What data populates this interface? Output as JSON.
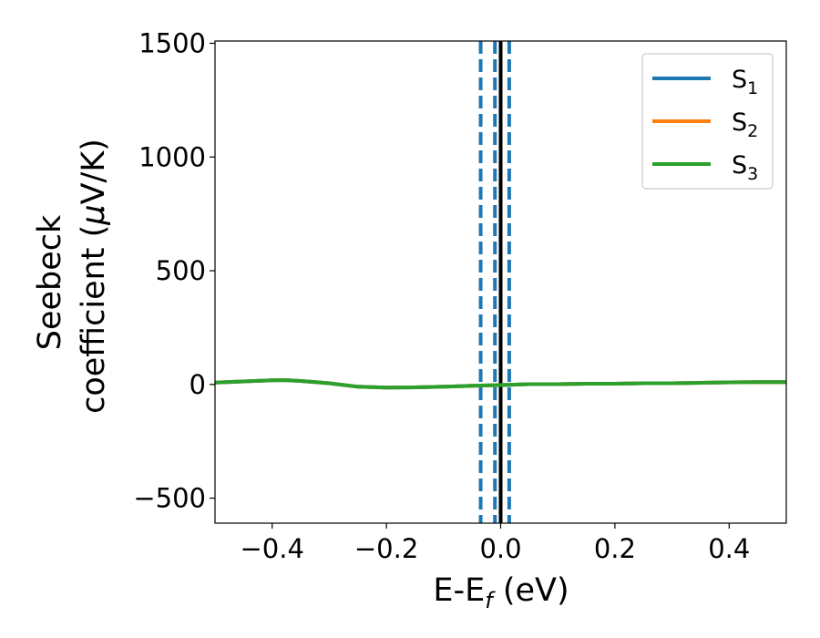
{
  "chart_data": {
    "type": "line",
    "xlabel": {
      "main": "E-E",
      "sub": "f",
      "tail": " (eV)"
    },
    "ylabel": {
      "line1": "Seebeck",
      "line2_pre": "coefficient  (",
      "mu": "μ",
      "line2_post": "V/K)"
    },
    "xlim": [
      -0.5,
      0.5
    ],
    "ylim": [
      -610,
      1510
    ],
    "x_ticks": [
      -0.4,
      -0.2,
      0.0,
      0.2,
      0.4
    ],
    "x_tick_labels": [
      "−0.4",
      "−0.2",
      "0.0",
      "0.2",
      "0.4"
    ],
    "y_ticks": [
      -500,
      0,
      500,
      1000,
      1500
    ],
    "y_tick_labels": [
      "−500",
      "0",
      "500",
      "1000",
      "1500"
    ],
    "legend_position": "top-right",
    "series": [
      {
        "name": "S",
        "sub": "1",
        "color": "#1f77b4",
        "x": [
          -0.5,
          -0.45,
          -0.4,
          -0.38,
          -0.35,
          -0.3,
          -0.25,
          -0.2,
          -0.15,
          -0.1,
          -0.05,
          0.0,
          0.05,
          0.1,
          0.15,
          0.2,
          0.25,
          0.3,
          0.35,
          0.4,
          0.45,
          0.5
        ],
        "y": [
          8,
          13,
          18,
          19,
          15,
          5,
          -10,
          -14,
          -13,
          -10,
          -6,
          -3,
          1,
          1,
          3,
          3,
          5,
          5,
          7,
          9,
          10,
          10
        ]
      },
      {
        "name": "S",
        "sub": "2",
        "color": "#ff7f0e",
        "x": [
          -0.5,
          -0.45,
          -0.4,
          -0.38,
          -0.35,
          -0.3,
          -0.25,
          -0.2,
          -0.15,
          -0.1,
          -0.05,
          0.0,
          0.05,
          0.1,
          0.15,
          0.2,
          0.25,
          0.3,
          0.35,
          0.4,
          0.45,
          0.5
        ],
        "y": [
          8,
          13,
          18,
          19,
          15,
          5,
          -10,
          -14,
          -13,
          -10,
          -6,
          -3,
          1,
          1,
          3,
          3,
          5,
          5,
          7,
          9,
          10,
          10
        ]
      },
      {
        "name": "S",
        "sub": "3",
        "color": "#2ca02c",
        "x": [
          -0.5,
          -0.45,
          -0.4,
          -0.38,
          -0.35,
          -0.3,
          -0.25,
          -0.2,
          -0.15,
          -0.1,
          -0.05,
          0.0,
          0.05,
          0.1,
          0.15,
          0.2,
          0.25,
          0.3,
          0.35,
          0.4,
          0.45,
          0.5
        ],
        "y": [
          8,
          13,
          18,
          19,
          15,
          5,
          -10,
          -14,
          -13,
          -10,
          -6,
          -3,
          1,
          1,
          3,
          3,
          5,
          5,
          7,
          9,
          10,
          10
        ]
      }
    ],
    "vlines": [
      {
        "x": -0.035,
        "style": "dashed",
        "color": "#1f77b4"
      },
      {
        "x": -0.01,
        "style": "dashed",
        "color": "#1f77b4"
      },
      {
        "x": 0.0,
        "style": "solid",
        "color": "#000000"
      },
      {
        "x": 0.015,
        "style": "dashed",
        "color": "#1f77b4"
      }
    ]
  }
}
